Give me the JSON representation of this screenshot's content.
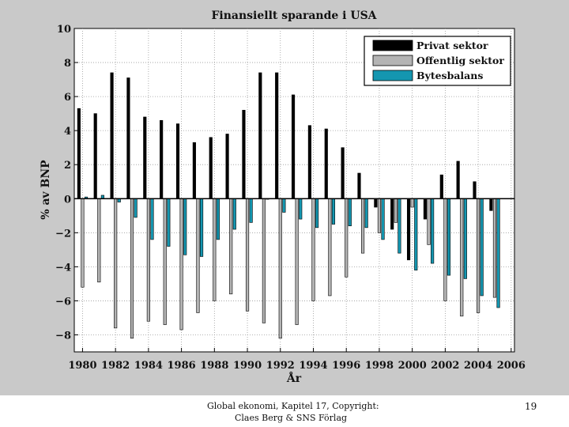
{
  "chart_data": {
    "type": "bar",
    "title": "Finansiellt sparande i USA",
    "xlabel": "År",
    "ylabel": "% av BNP",
    "ylim": [
      -9,
      10
    ],
    "xlim": [
      1979.5,
      2006.2
    ],
    "yticks": [
      -8,
      -6,
      -4,
      -2,
      0,
      2,
      4,
      6,
      8,
      10
    ],
    "xticks": [
      1980,
      1982,
      1984,
      1986,
      1988,
      1990,
      1992,
      1994,
      1996,
      1998,
      2000,
      2002,
      2004,
      2006
    ],
    "grid": true,
    "legend_position": "top-right",
    "categories": [
      1980,
      1981,
      1982,
      1983,
      1984,
      1985,
      1986,
      1987,
      1988,
      1989,
      1990,
      1991,
      1992,
      1993,
      1994,
      1995,
      1996,
      1997,
      1998,
      1999,
      2000,
      2001,
      2002,
      2003,
      2004,
      2005
    ],
    "series": [
      {
        "name": "Privat sektor",
        "color": "#000000",
        "values": [
          5.3,
          5.0,
          7.4,
          7.1,
          4.8,
          4.6,
          4.4,
          3.3,
          3.6,
          3.8,
          5.2,
          7.4,
          7.4,
          6.1,
          4.3,
          4.1,
          3.0,
          1.5,
          -0.5,
          -1.8,
          -3.6,
          -1.2,
          1.4,
          2.2,
          1.0,
          -0.7
        ]
      },
      {
        "name": "Offentlig sektor",
        "color": "#b4b4b4",
        "values": [
          -5.2,
          -4.9,
          -7.6,
          -8.2,
          -7.2,
          -7.4,
          -7.7,
          -6.7,
          -6.0,
          -5.6,
          -6.6,
          -7.3,
          -8.2,
          -7.4,
          -6.0,
          -5.7,
          -4.6,
          -3.2,
          -2.0,
          -1.4,
          -0.5,
          -2.7,
          -6.0,
          -6.9,
          -6.7,
          -5.8
        ]
      },
      {
        "name": "Bytesbalans",
        "color": "#1496b0",
        "values": [
          0.1,
          0.2,
          -0.2,
          -1.1,
          -2.4,
          -2.8,
          -3.3,
          -3.4,
          -2.4,
          -1.8,
          -1.4,
          0.0,
          -0.8,
          -1.2,
          -1.7,
          -1.5,
          -1.6,
          -1.7,
          -2.4,
          -3.2,
          -4.2,
          -3.8,
          -4.5,
          -4.7,
          -5.7,
          -6.4
        ]
      }
    ]
  },
  "footer": {
    "line1": "Global ekonomi, Kapitel 17, Copyright:",
    "line2": "Claes Berg & SNS Förlag",
    "page_number": "19"
  }
}
